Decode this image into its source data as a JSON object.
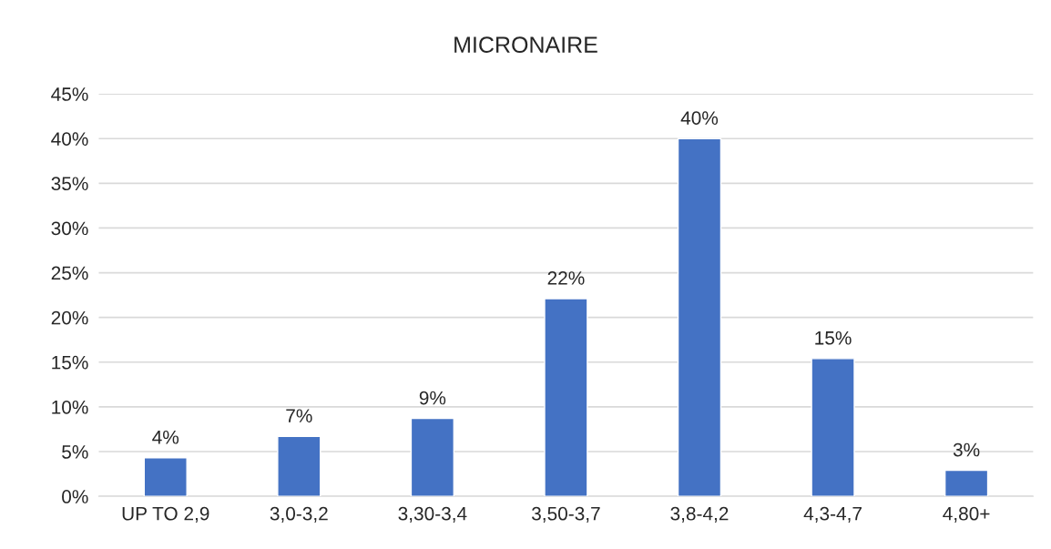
{
  "chart_data": {
    "type": "bar",
    "title": "MICRONAIRE",
    "categories": [
      "UP TO 2,9",
      "3,0-3,2",
      "3,30-3,4",
      "3,50-3,7",
      "3,8-4,2",
      "4,3-4,7",
      "4,80+"
    ],
    "values": [
      4.3,
      6.7,
      8.7,
      22.1,
      40,
      15.4,
      2.9
    ],
    "value_labels": [
      "4%",
      "7%",
      "9%",
      "22%",
      "40%",
      "15%",
      "3%"
    ],
    "color": "#4472c4",
    "ylim": [
      0,
      45
    ],
    "yticks": [
      {
        "value": 0,
        "label": "0%"
      },
      {
        "value": 5,
        "label": "5%"
      },
      {
        "value": 10,
        "label": "10%"
      },
      {
        "value": 15,
        "label": "15%"
      },
      {
        "value": 20,
        "label": "20%"
      },
      {
        "value": 25,
        "label": "25%"
      },
      {
        "value": 30,
        "label": "30%"
      },
      {
        "value": 35,
        "label": "35%"
      },
      {
        "value": 40,
        "label": "40%"
      },
      {
        "value": 45,
        "label": "45%"
      }
    ],
    "grid": "y"
  }
}
